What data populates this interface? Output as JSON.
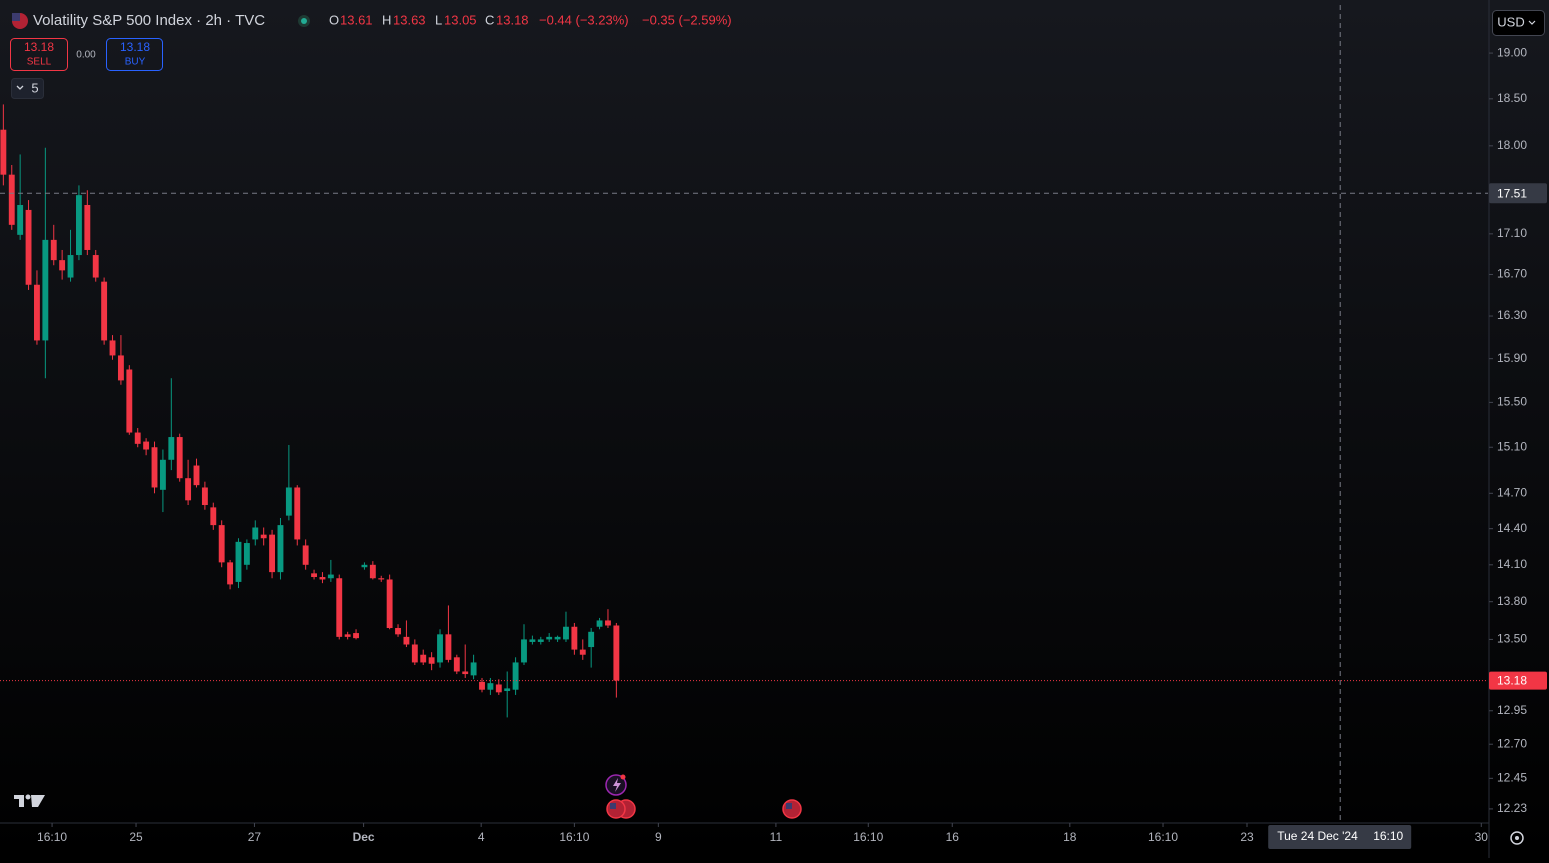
{
  "header": {
    "title": "Volatility S&P 500 Index · 2h · TVC",
    "ohlc_labels": [
      "O",
      "H",
      "L",
      "C"
    ],
    "change": "−0.44 (−3.23%)",
    "change_extended": "−0.35 (−2.59%)",
    "sell_label": "SELL",
    "buy_label": "BUY",
    "spread": "0.00",
    "indicator_count": 5,
    "currency": "USD"
  },
  "chart_data": {
    "type": "candlestick",
    "up_color": "#089981",
    "down_color": "#f23645",
    "log_scale": true,
    "grid": false,
    "open": [
      18.17,
      17.7,
      17.09,
      17.34,
      16.6,
      16.07,
      17.04,
      16.84,
      16.67,
      16.89,
      17.39,
      16.89,
      16.63,
      16.07,
      15.93,
      15.8,
      15.23,
      15.15,
      15.1,
      14.73,
      14.99,
      15.19,
      14.83,
      14.94,
      14.75,
      14.58,
      14.43,
      14.12,
      13.96,
      14.1,
      14.31,
      14.35,
      14.35,
      14.04,
      14.51,
      14.75,
      14.26,
      14.03,
      14.0,
      13.99,
      13.99,
      13.54,
      13.55,
      14.08,
      14.1,
      13.99,
      13.98,
      13.59,
      13.52,
      13.46,
      13.38,
      13.36,
      13.32,
      13.54,
      13.36,
      13.25,
      13.22,
      13.17,
      13.11,
      13.15,
      13.1,
      13.11,
      13.32,
      13.48,
      13.48,
      13.5,
      13.5,
      13.5,
      13.6,
      13.42,
      13.44,
      13.6,
      13.65,
      13.61
    ],
    "high": [
      18.44,
      17.8,
      17.91,
      17.44,
      16.74,
      17.98,
      17.19,
      16.94,
      17.14,
      17.59,
      17.54,
      16.94,
      16.67,
      16.12,
      16.12,
      15.84,
      15.27,
      15.18,
      15.15,
      15.08,
      15.72,
      15.22,
      14.99,
      15.0,
      14.8,
      14.62,
      14.47,
      14.14,
      14.32,
      14.31,
      14.47,
      14.41,
      14.39,
      14.49,
      15.12,
      14.77,
      14.31,
      14.06,
      14.04,
      14.14,
      14.02,
      13.56,
      13.58,
      14.12,
      14.13,
      14.01,
      14.02,
      13.62,
      13.65,
      13.5,
      13.42,
      13.4,
      13.58,
      13.77,
      13.38,
      13.46,
      13.38,
      13.2,
      13.2,
      13.19,
      13.25,
      13.36,
      13.62,
      13.53,
      13.52,
      13.55,
      13.53,
      13.72,
      13.63,
      13.5,
      13.59,
      13.67,
      13.74,
      13.63
    ],
    "low": [
      17.59,
      17.14,
      17.04,
      16.55,
      16.03,
      15.72,
      16.79,
      16.65,
      16.63,
      16.84,
      16.89,
      16.63,
      16.03,
      15.89,
      15.66,
      15.21,
      15.1,
      15.03,
      14.7,
      14.54,
      14.9,
      14.8,
      14.6,
      14.75,
      14.56,
      14.39,
      14.08,
      13.9,
      13.91,
      14.06,
      14.26,
      14.26,
      13.99,
      13.98,
      14.47,
      14.26,
      14.06,
      13.98,
      13.95,
      13.96,
      13.5,
      13.5,
      13.5,
      14.06,
      13.98,
      13.96,
      13.58,
      13.52,
      13.44,
      13.3,
      13.3,
      13.26,
      13.28,
      13.32,
      13.23,
      13.2,
      13.19,
      13.09,
      13.07,
      13.07,
      12.9,
      13.07,
      13.3,
      13.46,
      13.46,
      13.48,
      13.48,
      13.48,
      13.38,
      13.34,
      13.28,
      13.58,
      13.59,
      13.05
    ],
    "close": [
      17.7,
      17.19,
      17.39,
      16.6,
      16.07,
      17.04,
      16.84,
      16.74,
      16.89,
      17.49,
      16.94,
      16.67,
      16.07,
      15.93,
      15.7,
      15.23,
      15.13,
      15.08,
      14.75,
      14.99,
      15.19,
      14.83,
      14.64,
      14.77,
      14.6,
      14.43,
      14.12,
      13.94,
      14.29,
      14.28,
      14.41,
      14.32,
      14.04,
      14.43,
      14.75,
      14.31,
      14.1,
      14.0,
      13.98,
      14.02,
      13.52,
      13.52,
      13.51,
      14.1,
      13.99,
      13.98,
      13.59,
      13.54,
      13.46,
      13.32,
      13.32,
      13.31,
      13.54,
      13.34,
      13.25,
      13.23,
      13.32,
      13.11,
      13.16,
      13.09,
      13.12,
      13.32,
      13.5,
      13.5,
      13.5,
      13.52,
      13.52,
      13.6,
      13.42,
      13.38,
      13.56,
      13.65,
      13.61,
      13.18
    ],
    "ylim": [
      12.13,
      19.54
    ],
    "yticks": [
      {
        "value": 19,
        "label": "19.00"
      },
      {
        "value": 18.5,
        "label": "18.50"
      },
      {
        "value": 18,
        "label": "18.00"
      },
      {
        "value": 17.1,
        "label": "17.10"
      },
      {
        "value": 16.7,
        "label": "16.70"
      },
      {
        "value": 16.3,
        "label": "16.30"
      },
      {
        "value": 15.9,
        "label": "15.90"
      },
      {
        "value": 15.5,
        "label": "15.50"
      },
      {
        "value": 15.1,
        "label": "15.10"
      },
      {
        "value": 14.7,
        "label": "14.70"
      },
      {
        "value": 14.4,
        "label": "14.40"
      },
      {
        "value": 14.1,
        "label": "14.10"
      },
      {
        "value": 13.8,
        "label": "13.80"
      },
      {
        "value": 13.5,
        "label": "13.50"
      },
      12.95,
      {
        "value": 12.7,
        "label": "12.70"
      },
      12.45,
      12.23
    ],
    "xlim": [
      -0.4,
      176.8
    ],
    "xticks": [
      {
        "value": 5.8,
        "label": "16:10"
      },
      {
        "value": 15.8,
        "label": "25"
      },
      {
        "value": 29.9,
        "label": "27"
      },
      {
        "value": 42.9,
        "label": "Dec"
      },
      {
        "value": 56.9,
        "label": "4"
      },
      {
        "value": 68,
        "label": "16:10"
      },
      {
        "value": 78,
        "label": "9"
      },
      {
        "value": 92,
        "label": "11"
      },
      {
        "value": 103,
        "label": "16:10"
      },
      {
        "value": 113,
        "label": "16"
      },
      {
        "value": 127,
        "label": "18"
      },
      {
        "value": 138.1,
        "label": "16:10"
      },
      {
        "value": 148.1,
        "label": "23"
      },
      {
        "value": 176,
        "label": "30"
      }
    ],
    "crosshair": {
      "x": 159.2,
      "x_label": "Tue 24 Dec '24",
      "x_time": "16:10",
      "y": 17.51
    }
  }
}
